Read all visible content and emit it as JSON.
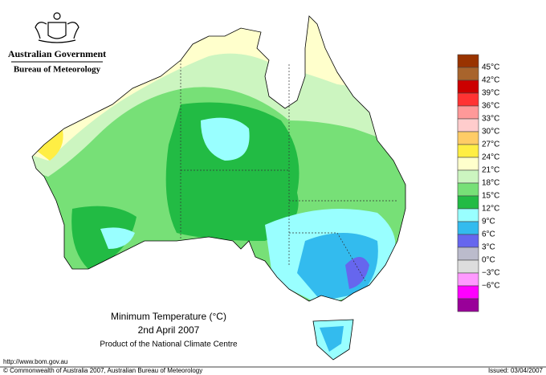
{
  "header": {
    "government": "Australian Government",
    "agency": "Bureau of Meteorology"
  },
  "map": {
    "title": "Minimum Temperature (°C)",
    "date": "2nd April 2007",
    "product": "Product of the National Climate Centre"
  },
  "legend": {
    "labels": [
      "45°C",
      "42°C",
      "39°C",
      "36°C",
      "33°C",
      "30°C",
      "27°C",
      "24°C",
      "21°C",
      "18°C",
      "15°C",
      "12°C",
      "9°C",
      "6°C",
      "3°C",
      "0°C",
      "−3°C",
      "−6°C"
    ],
    "colors": [
      "#993300",
      "#a8642c",
      "#cc0000",
      "#ff3333",
      "#ff9999",
      "#ffcccc",
      "#ffcc66",
      "#ffee44",
      "#ffffcc",
      "#ccf5c0",
      "#77e077",
      "#22bb44",
      "#99ffff",
      "#33bbee",
      "#6666ee",
      "#bbbbcc",
      "#dddddd",
      "#ff99ff",
      "#ff00ff",
      "#990099"
    ]
  },
  "footer": {
    "url": "http://www.bom.gov.au",
    "copyright": "© Commonwealth of Australia 2007, Australian Bureau of Meteorology",
    "issued": "Issued: 03/04/2007"
  }
}
